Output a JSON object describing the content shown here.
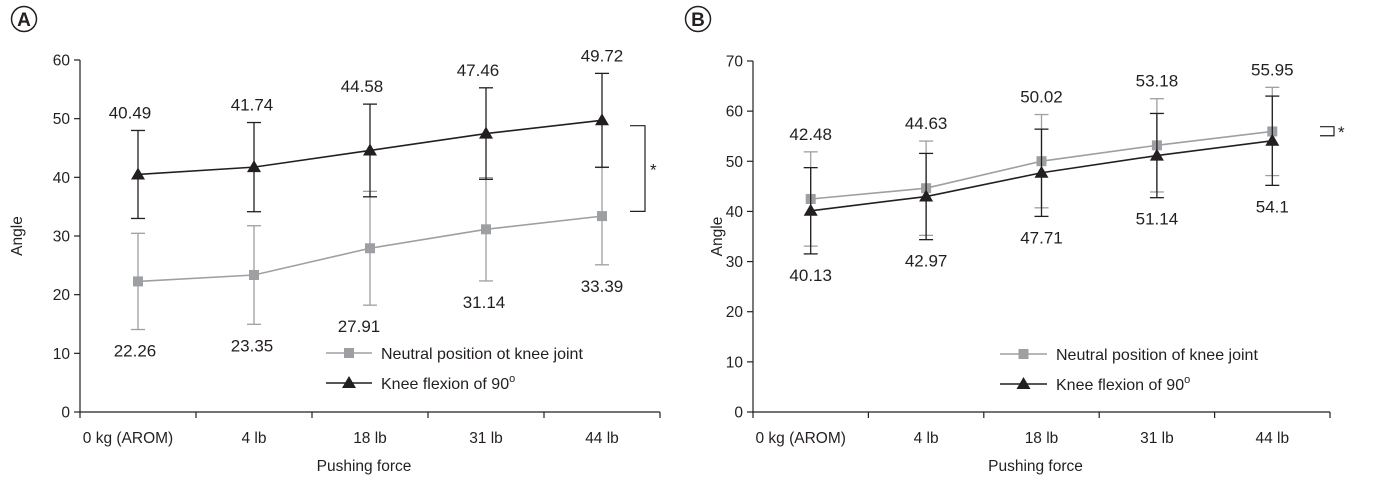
{
  "chart_data": [
    {
      "type": "line",
      "panel_label": "A",
      "categories": [
        "0 kg (AROM)",
        "4 lb",
        "18 lb",
        "31 lb",
        "44 lb"
      ],
      "xlabel": "Pushing force",
      "ylabel": "Angle",
      "ylim": [
        0,
        60
      ],
      "yticks": [
        0,
        10,
        20,
        30,
        40,
        50,
        60
      ],
      "grid": false,
      "legend_position": "bottom-right",
      "series": [
        {
          "name": "Neutral position ot knee joint",
          "color": "#9d9fa2",
          "marker": "square",
          "values": [
            22.26,
            23.35,
            27.91,
            31.14,
            33.39
          ],
          "error": [
            8.2,
            8.4,
            9.7,
            8.8,
            8.3
          ],
          "value_labels": [
            "22.26",
            "23.35",
            "27.91",
            "31.14",
            "33.39"
          ]
        },
        {
          "name": "Knee flexion of 90",
          "name_superscript": "o",
          "color": "#231f20",
          "marker": "triangle",
          "values": [
            40.49,
            41.74,
            44.58,
            47.46,
            49.72
          ],
          "error": [
            7.5,
            7.6,
            7.9,
            7.8,
            8.0
          ],
          "value_labels": [
            "40.49",
            "41.74",
            "44.58",
            "47.46",
            "49.72"
          ]
        }
      ],
      "annotations": [
        {
          "text": "*",
          "between": [
            48.8,
            34.2
          ]
        }
      ]
    },
    {
      "type": "line",
      "panel_label": "B",
      "categories": [
        "0 kg (AROM)",
        "4 lb",
        "18 lb",
        "31 lb",
        "44 lb"
      ],
      "xlabel": "Pushing force",
      "ylabel": "Angle",
      "ylim": [
        0,
        70
      ],
      "yticks": [
        0,
        10,
        20,
        30,
        40,
        50,
        60,
        70
      ],
      "grid": false,
      "legend_position": "bottom-right",
      "series": [
        {
          "name": "Neutral position of knee joint",
          "color": "#9d9fa2",
          "marker": "square",
          "values": [
            42.48,
            44.63,
            50.02,
            53.18,
            55.95
          ],
          "error": [
            9.4,
            9.4,
            9.3,
            9.3,
            8.8
          ],
          "value_labels": [
            "42.48",
            "44.63",
            "50.02",
            "53.18",
            "55.95"
          ]
        },
        {
          "name": "Knee flexion of 90",
          "name_superscript": "o",
          "color": "#231f20",
          "marker": "triangle",
          "values": [
            40.13,
            42.97,
            47.71,
            51.14,
            54.1
          ],
          "error": [
            8.6,
            8.6,
            8.7,
            8.4,
            8.9
          ],
          "value_labels": [
            "40.13",
            "42.97",
            "47.71",
            "51.14",
            "54.1"
          ]
        }
      ],
      "annotations": [
        {
          "text": "*",
          "between": [
            56.9,
            55.1
          ]
        }
      ]
    }
  ]
}
